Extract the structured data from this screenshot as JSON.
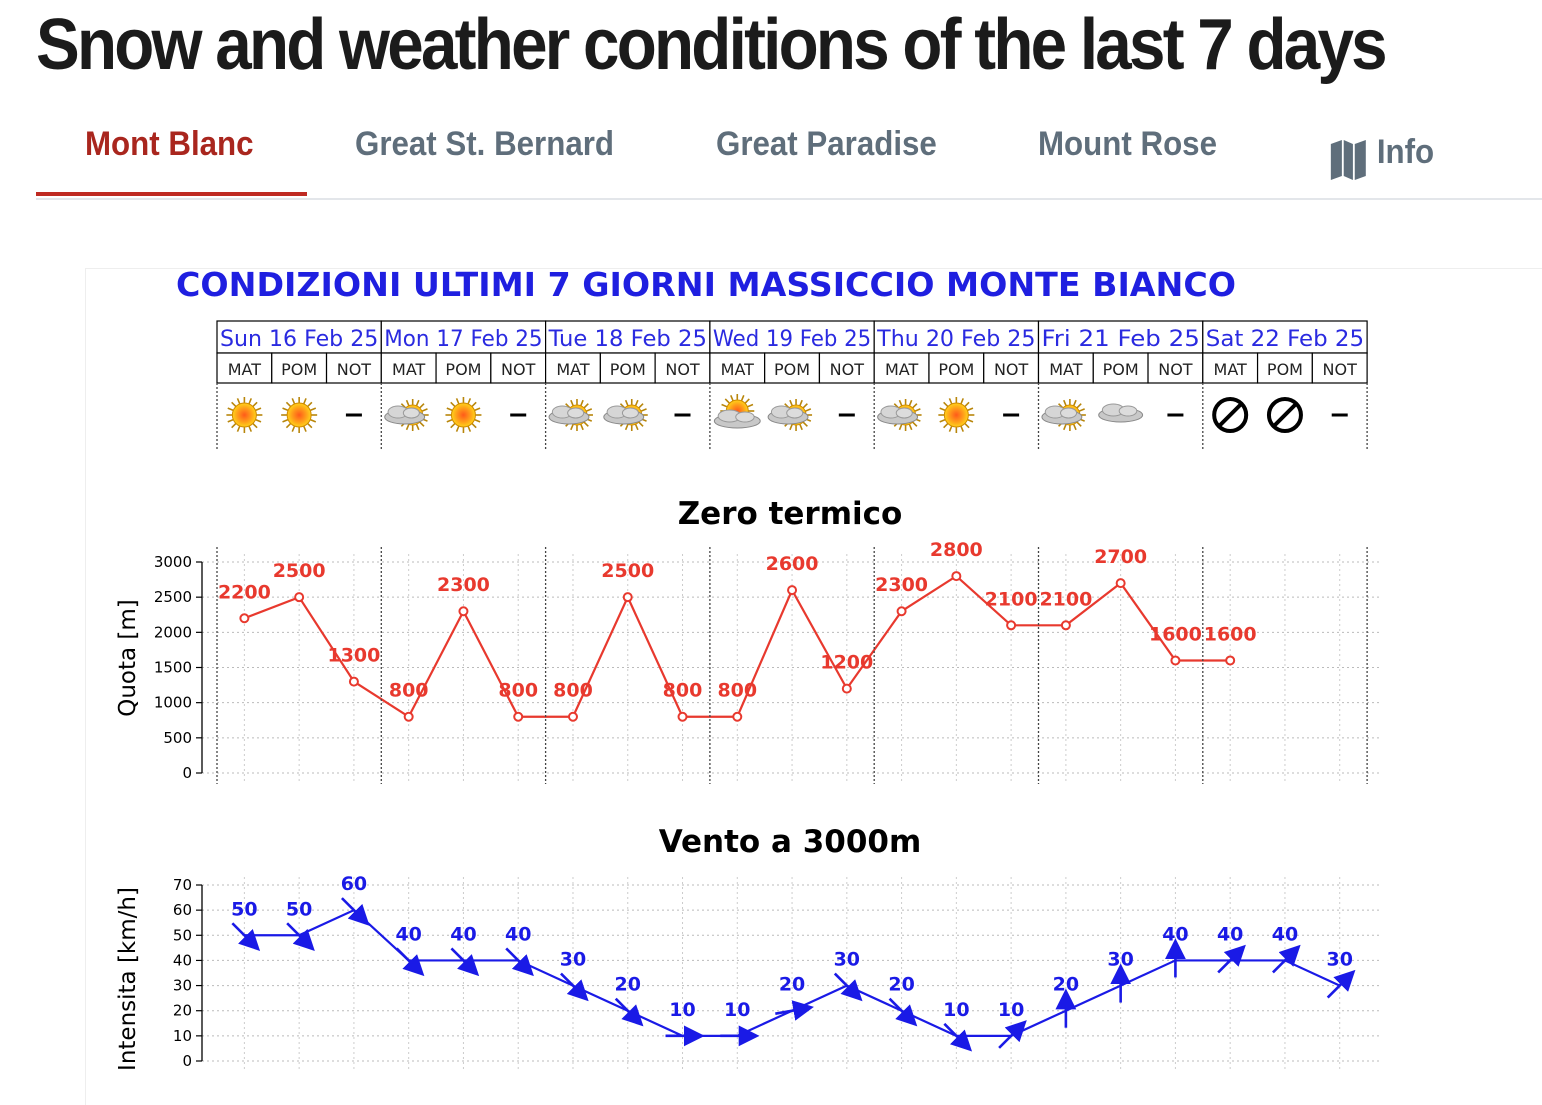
{
  "page": {
    "title": "Snow and weather conditions of the last 7 days"
  },
  "tabs": [
    {
      "label": "Mont Blanc",
      "active": true
    },
    {
      "label": "Great St. Bernard",
      "active": false
    },
    {
      "label": "Great Paradise",
      "active": false
    },
    {
      "label": "Mount Rose",
      "active": false
    },
    {
      "label": "Info",
      "icon": "map-icon",
      "active": false
    }
  ],
  "colors": {
    "active_tab": "#a9261e",
    "tab_underline": "#bf2a22",
    "inactive_tab": "#5f6e7b",
    "chart_title": "#1f1fe0",
    "freezing_series": "#e8392e",
    "wind_series": "#1a1ae6"
  },
  "chart_header": {
    "title": "CONDIZIONI ULTIMI 7 GIORNI MASSICCIO MONTE BIANCO",
    "days": [
      "Sun 16 Feb 25",
      "Mon 17 Feb 25",
      "Tue 18 Feb 25",
      "Wed 19 Feb 25",
      "Thu 20 Feb 25",
      "Fri 21 Feb 25",
      "Sat 22 Feb 25"
    ],
    "periods": [
      "MAT",
      "POM",
      "NOT"
    ],
    "weather_icons": [
      "sun-icon",
      "sun-icon",
      "dash-icon",
      "cloud-sun-icon",
      "sun-icon",
      "dash-icon",
      "cloud-sun-icon",
      "cloud-sun-icon",
      "dash-icon",
      "sun-behind-cloud-icon",
      "cloud-sun-icon",
      "dash-icon",
      "cloud-sun-icon",
      "sun-icon",
      "dash-icon",
      "cloud-sun-icon",
      "cloud-icon",
      "dash-icon",
      "no-data-icon",
      "no-data-icon",
      "dash-icon"
    ]
  },
  "chart_data": [
    {
      "type": "line",
      "title": "Zero termico",
      "ylabel": "Quota [m]",
      "ylim": [
        0,
        3000
      ],
      "yticks": [
        "0",
        "500",
        "1000",
        "1500",
        "2000",
        "2500",
        "3000"
      ],
      "y_values": [
        0,
        500,
        1000,
        1500,
        2000,
        2500,
        3000
      ],
      "grid": true,
      "series": [
        {
          "values": [
            2200,
            2500,
            1300,
            800,
            2300,
            800,
            800,
            2500,
            800,
            800,
            2600,
            1200,
            2300,
            2800,
            2100,
            2100,
            2700,
            1600,
            1600
          ],
          "labels": [
            "2200",
            "2500",
            "1300",
            "800",
            "2300",
            "800",
            "800",
            "2500",
            "800",
            "800",
            "2600",
            "1200",
            "2300",
            "2800",
            "2100",
            "2100",
            "2700",
            "1600",
            "1600"
          ],
          "color": "#e8392e"
        }
      ]
    },
    {
      "type": "line",
      "title": "Vento a 3000m",
      "ylabel": "Intensita [km/h]",
      "ylim": [
        0,
        70
      ],
      "yticks": [
        "0",
        "10",
        "20",
        "30",
        "40",
        "50",
        "60",
        "70"
      ],
      "y_values": [
        0,
        10,
        20,
        30,
        40,
        50,
        60,
        70
      ],
      "grid": true,
      "series": [
        {
          "values": [
            50,
            50,
            60,
            40,
            40,
            40,
            30,
            20,
            10,
            10,
            20,
            30,
            20,
            10,
            10,
            20,
            30,
            40,
            40,
            40,
            30
          ],
          "labels": [
            "50",
            "50",
            "60",
            "40",
            "40",
            "40",
            "30",
            "20",
            "10",
            "10",
            "20",
            "30",
            "20",
            "10",
            "10",
            "20",
            "30",
            "40",
            "40",
            "40",
            "30"
          ],
          "direction_degrees": [
            135,
            135,
            135,
            135,
            135,
            135,
            135,
            135,
            90,
            90,
            80,
            135,
            135,
            135,
            45,
            0,
            0,
            0,
            45,
            45,
            45
          ],
          "color": "#1a1ae6"
        }
      ]
    }
  ]
}
